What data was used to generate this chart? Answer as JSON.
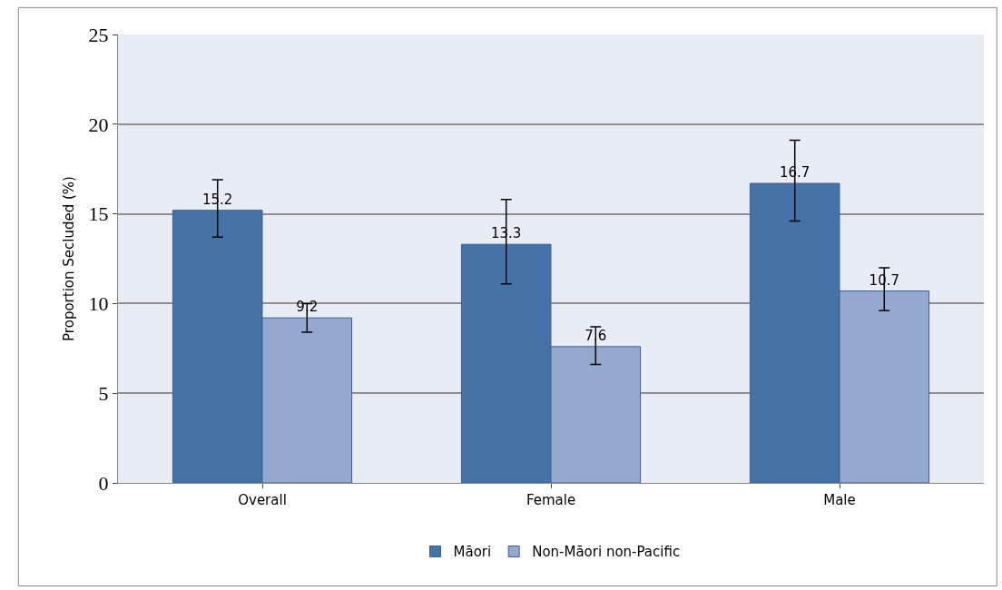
{
  "chart_data": {
    "type": "bar",
    "ylabel": "Proportion Secluded (%)",
    "categories": [
      "Overall",
      "Female",
      "Male"
    ],
    "series": [
      {
        "name": "Māori",
        "color": "#4673a7",
        "values": [
          15.2,
          13.3,
          16.7
        ],
        "errors": [
          [
            13.7,
            16.9
          ],
          [
            11.1,
            15.8
          ],
          [
            14.6,
            19.1
          ]
        ]
      },
      {
        "name": "Non-Māori non-Pacific",
        "color": "#95a9d0",
        "values": [
          9.2,
          7.6,
          10.7
        ],
        "errors": [
          [
            8.4,
            10.0
          ],
          [
            6.6,
            8.7
          ],
          [
            9.6,
            12.0
          ]
        ]
      }
    ],
    "ylim": [
      0,
      25
    ],
    "yticks": [
      0,
      5,
      10,
      15,
      20,
      25
    ],
    "grid": "y",
    "legend": "bottom",
    "data_labels": true
  }
}
